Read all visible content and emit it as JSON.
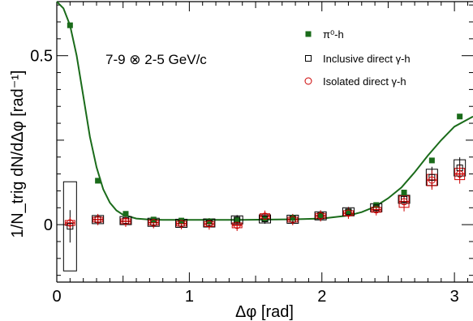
{
  "chart_data": {
    "type": "scatter",
    "annotation": "7-9 ⊗ 2-5 GeV/c",
    "xlabel": "Δφ [rad]",
    "ylabel": "1/N_trig dN/dΔφ [rad⁻¹]",
    "xlim": [
      0,
      3.14
    ],
    "ylim": [
      -0.17,
      0.66
    ],
    "xticks": [
      "0",
      "1",
      "2",
      "3"
    ],
    "yticks": [
      "0",
      "0.5"
    ],
    "legend_position": "top-right",
    "colors": {
      "pi0": "#1a6b1a",
      "inclusive": "#000000",
      "isolated": "#cc0000"
    },
    "series": [
      {
        "name": "π⁰-h",
        "marker": "filled-square",
        "x": [
          0.1,
          0.31,
          0.52,
          0.73,
          0.94,
          1.15,
          1.36,
          1.57,
          1.78,
          1.99,
          2.2,
          2.41,
          2.62,
          2.83,
          3.04
        ],
        "y": [
          0.59,
          0.13,
          0.032,
          0.015,
          0.012,
          0.01,
          0.014,
          0.018,
          0.02,
          0.028,
          0.038,
          0.058,
          0.095,
          0.19,
          0.32
        ]
      },
      {
        "name": "Inclusive direct γ-h",
        "marker": "open-square",
        "x": [
          0.1,
          0.31,
          0.52,
          0.73,
          0.94,
          1.15,
          1.36,
          1.57,
          1.78,
          1.99,
          2.2,
          2.41,
          2.62,
          2.83,
          3.04
        ],
        "y": [
          -0.005,
          0.015,
          0.012,
          0.007,
          0.004,
          0.005,
          0.014,
          0.017,
          0.016,
          0.026,
          0.038,
          0.05,
          0.075,
          0.14,
          0.168
        ]
      },
      {
        "name": "Isolated direct γ-h",
        "marker": "open-circle",
        "x": [
          0.1,
          0.31,
          0.52,
          0.73,
          0.94,
          1.15,
          1.36,
          1.57,
          1.78,
          1.99,
          2.2,
          2.41,
          2.62,
          2.83,
          3.04
        ],
        "y": [
          0.005,
          0.015,
          0.01,
          0.006,
          0.003,
          0.002,
          -0.002,
          0.025,
          0.015,
          0.026,
          0.034,
          0.044,
          0.068,
          0.132,
          0.15
        ]
      }
    ],
    "fit_line": {
      "color": "#1a6b1a",
      "x": [
        0.0,
        0.05,
        0.1,
        0.15,
        0.2,
        0.25,
        0.3,
        0.35,
        0.4,
        0.45,
        0.5,
        0.6,
        0.7,
        0.8,
        1.0,
        1.2,
        1.4,
        1.6,
        1.8,
        2.0,
        2.2,
        2.3,
        2.4,
        2.5,
        2.6,
        2.7,
        2.8,
        2.9,
        3.0,
        3.14
      ],
      "y": [
        0.66,
        0.64,
        0.59,
        0.5,
        0.38,
        0.26,
        0.17,
        0.105,
        0.065,
        0.042,
        0.029,
        0.018,
        0.015,
        0.014,
        0.014,
        0.014,
        0.014,
        0.015,
        0.016,
        0.018,
        0.027,
        0.037,
        0.053,
        0.078,
        0.11,
        0.155,
        0.205,
        0.25,
        0.29,
        0.32
      ]
    }
  }
}
